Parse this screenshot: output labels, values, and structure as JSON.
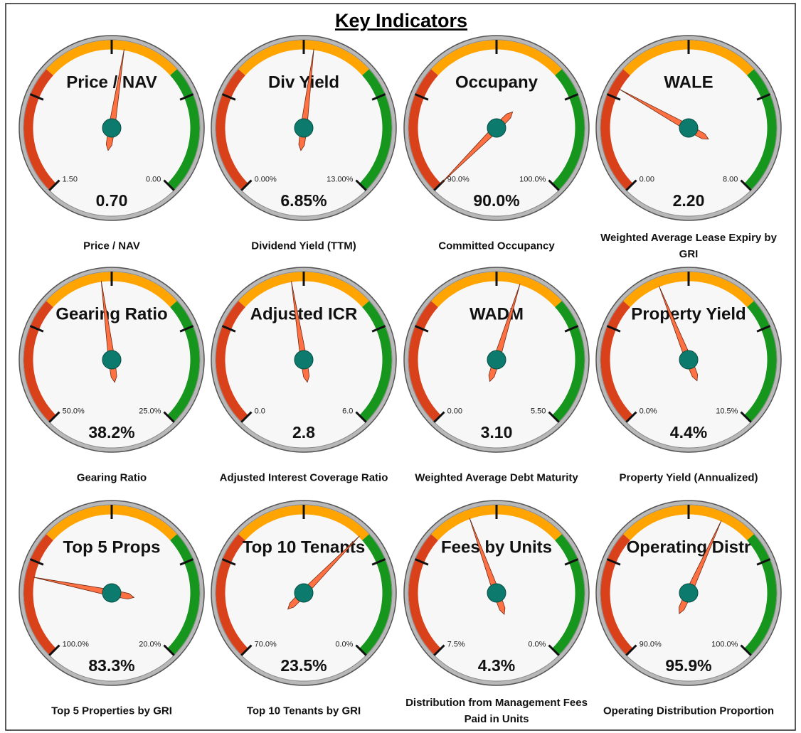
{
  "title": "Key Indicators",
  "chart_data": [
    {
      "type": "gauge",
      "title": "Price / NAV",
      "label": "Price / NAV",
      "ylim": [
        1.5,
        0
      ],
      "yticks": [
        {
          "value": 1.5,
          "label": "1.50"
        },
        {
          "value": 0,
          "label": "0.00"
        }
      ],
      "value": 0.7,
      "value_label": "0.70",
      "band_colors": [
        "#d9411b",
        "#ffa400",
        "#16961c"
      ],
      "color": "#ff7043"
    },
    {
      "type": "gauge",
      "title": "Div Yield",
      "label": "Dividend Yield (TTM)",
      "ylim": [
        0,
        13
      ],
      "yticks": [
        {
          "value": 0,
          "label": "0.00%"
        },
        {
          "value": 13,
          "label": "13.00%"
        }
      ],
      "value": 6.85,
      "value_label": "6.85%",
      "band_colors": [
        "#d9411b",
        "#ffa400",
        "#16961c"
      ],
      "color": "#ff7043"
    },
    {
      "type": "gauge",
      "title": "Occupany",
      "label": "Committed Occupancy",
      "ylim": [
        90,
        100
      ],
      "yticks": [
        {
          "value": 90,
          "label": "90.0%"
        },
        {
          "value": 100,
          "label": "100.0%"
        }
      ],
      "value": 90,
      "value_label": "90.0%",
      "band_colors": [
        "#d9411b",
        "#ffa400",
        "#16961c"
      ],
      "color": "#ff7043"
    },
    {
      "type": "gauge",
      "title": "WALE",
      "label": "Weighted Average Lease Expiry by GRI",
      "ylim": [
        0,
        8
      ],
      "yticks": [
        {
          "value": 0,
          "label": "0.00"
        },
        {
          "value": 8,
          "label": "8.00"
        }
      ],
      "value": 2.2,
      "value_label": "2.20",
      "band_colors": [
        "#d9411b",
        "#ffa400",
        "#16961c"
      ],
      "color": "#ff7043"
    },
    {
      "type": "gauge",
      "title": "Gearing Ratio",
      "label": "Gearing Ratio",
      "ylim": [
        50,
        25
      ],
      "yticks": [
        {
          "value": 50,
          "label": "50.0%"
        },
        {
          "value": 25,
          "label": "25.0%"
        }
      ],
      "value": 38.2,
      "value_label": "38.2%",
      "band_colors": [
        "#d9411b",
        "#ffa400",
        "#16961c"
      ],
      "color": "#ff7043"
    },
    {
      "type": "gauge",
      "title": "Adjusted ICR",
      "label": "Adjusted Interest Coverage Ratio",
      "ylim": [
        0,
        6
      ],
      "yticks": [
        {
          "value": 0,
          "label": "0.0"
        },
        {
          "value": 6,
          "label": "6.0"
        }
      ],
      "value": 2.8,
      "band_colors": [
        "#d9411b",
        "#ffa400",
        "#16961c"
      ],
      "color": "#ff7043"
    },
    {
      "type": "gauge",
      "title": "WADM",
      "label": "Weighted Average Debt Maturity",
      "ylim": [
        0,
        5.5
      ],
      "yticks": [
        {
          "value": 0,
          "label": "0.00"
        },
        {
          "value": 5.5,
          "label": "5.50"
        }
      ],
      "value": 3.1,
      "value_label": "3.10",
      "band_colors": [
        "#d9411b",
        "#ffa400",
        "#16961c"
      ],
      "color": "#ff7043"
    },
    {
      "type": "gauge",
      "title": "Property Yield",
      "label": "Property Yield (Annualized)",
      "ylim": [
        0,
        10.5
      ],
      "yticks": [
        {
          "value": 0,
          "label": "0.0%"
        },
        {
          "value": 10.5,
          "label": "10.5%"
        }
      ],
      "value": 4.4,
      "value_label": "4.4%",
      "band_colors": [
        "#d9411b",
        "#ffa400",
        "#16961c"
      ],
      "color": "#ff7043"
    },
    {
      "type": "gauge",
      "title": "Top 5 Props",
      "label": "Top 5 Properties by GRI",
      "ylim": [
        100,
        20
      ],
      "yticks": [
        {
          "value": 100,
          "label": "100.0%"
        },
        {
          "value": 20,
          "label": "20.0%"
        }
      ],
      "value": 83.3,
      "value_label": "83.3%",
      "band_colors": [
        "#d9411b",
        "#ffa400",
        "#16961c"
      ],
      "color": "#ff7043"
    },
    {
      "type": "gauge",
      "title": "Top 10 Tenants",
      "label": "Top 10 Tenants by GRI",
      "ylim": [
        70,
        0
      ],
      "yticks": [
        {
          "value": 70,
          "label": "70.0%"
        },
        {
          "value": 0,
          "label": "0.0%"
        }
      ],
      "value": 23.5,
      "value_label": "23.5%",
      "band_colors": [
        "#d9411b",
        "#ffa400",
        "#16961c"
      ],
      "color": "#ff7043"
    },
    {
      "type": "gauge",
      "title": "Fees by Units",
      "label": "Distribution from Management Fees Paid in Units",
      "ylim": [
        7.5,
        0
      ],
      "yticks": [
        {
          "value": 7.5,
          "label": "7.5%"
        },
        {
          "value": 0,
          "label": "0.0%"
        }
      ],
      "value": 4.3,
      "value_label": "4.3%",
      "band_colors": [
        "#d9411b",
        "#ffa400",
        "#16961c"
      ],
      "color": "#ff7043"
    },
    {
      "type": "gauge",
      "title": "Operating Distr",
      "label": "Operating Distribution Proportion",
      "ylim": [
        90,
        100
      ],
      "yticks": [
        {
          "value": 90,
          "label": "90.0%"
        },
        {
          "value": 100,
          "label": "100.0%"
        }
      ],
      "value": 95.9,
      "value_label": "95.9%",
      "band_colors": [
        "#d9411b",
        "#ffa400",
        "#16961c"
      ],
      "color": "#ff7043"
    }
  ]
}
